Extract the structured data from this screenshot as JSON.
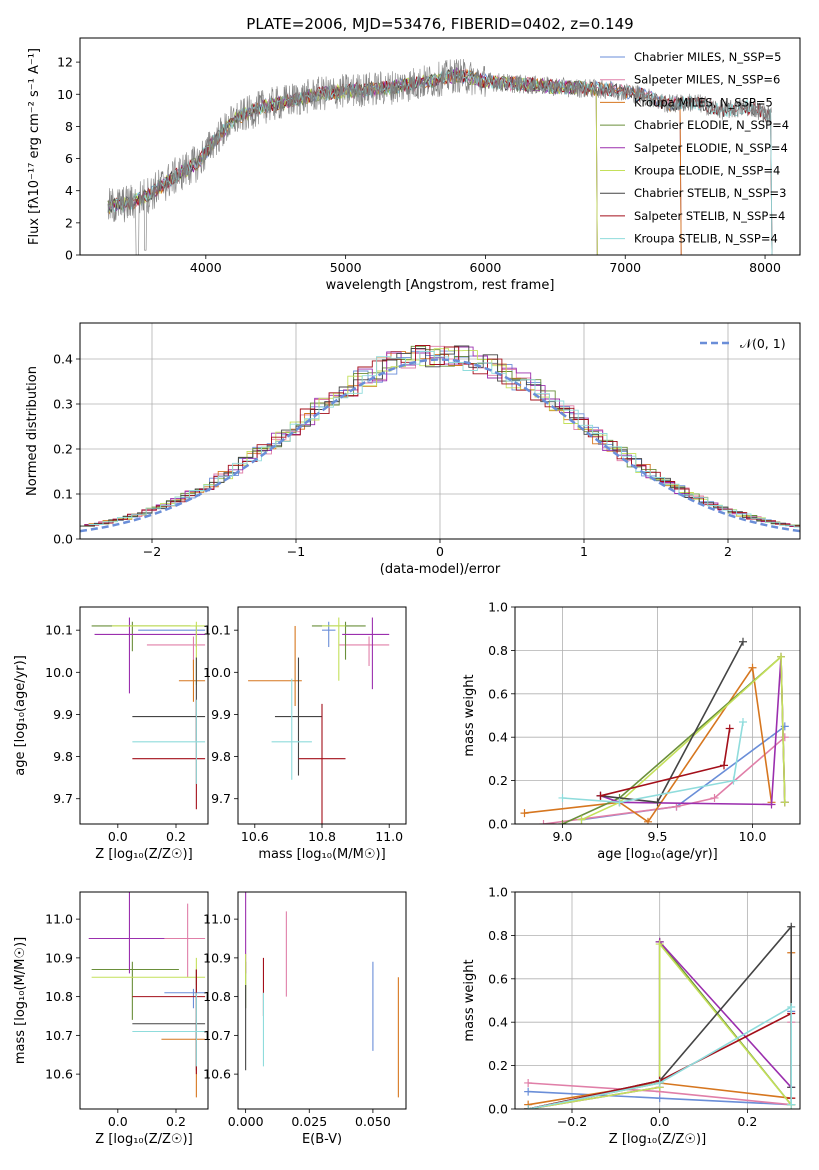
{
  "colors": {
    "chabrier_miles": "#6a8ed8",
    "salpeter_miles": "#e07fa8",
    "kroupa_miles": "#d6761f",
    "chabrier_elodie": "#6a8f3a",
    "salpeter_elodie": "#9b2fae",
    "kroupa_elodie": "#c4e05a",
    "chabrier_stelib": "#444444",
    "salpeter_stelib": "#a30f1a",
    "kroupa_stelib": "#8fdcdc",
    "spectrum": "#7f7f7f"
  },
  "chart_data": [
    {
      "type": "line",
      "title": "PLATE=2006, MJD=53476, FIBERID=0402, z=0.149",
      "xlabel": "wavelength [Angstrom, rest frame]",
      "ylabel": "Flux [fλ10⁻¹⁷ erg cm⁻² s⁻¹ A⁻¹]",
      "xlim": [
        3100,
        8250
      ],
      "ylim": [
        0,
        13.5
      ],
      "xticks": [
        "4000",
        "5000",
        "6000",
        "7000",
        "8000"
      ],
      "yticks": [
        "0",
        "2",
        "4",
        "6",
        "8",
        "10",
        "12"
      ],
      "legend_position": "right",
      "legend": [
        "Chabrier MILES, N_SSP=5",
        "Salpeter MILES, N_SSP=6",
        "Kroupa MILES, N_SSP=5",
        "Chabrier ELODIE, N_SSP=4",
        "Salpeter ELODIE, N_SSP=4",
        "Kroupa ELODIE, N_SSP=4",
        "Chabrier STELIB, N_SSP=3",
        "Salpeter STELIB, N_SSP=4",
        "Kroupa STELIB, N_SSP=4"
      ],
      "continuum": {
        "x": [
          3300,
          3450,
          3600,
          3800,
          3950,
          4050,
          4200,
          4400,
          4600,
          4800,
          5000,
          5300,
          5600,
          5800,
          6000,
          6300,
          6600,
          6900,
          7100,
          7300,
          7500,
          7700,
          7900,
          8050
        ],
        "y": [
          3.0,
          3.2,
          3.8,
          5.0,
          5.8,
          7.0,
          8.4,
          9.2,
          9.6,
          10.0,
          10.2,
          10.4,
          10.8,
          11.2,
          10.8,
          10.6,
          10.4,
          10.3,
          10.0,
          9.4,
          9.5,
          9.0,
          9.2,
          8.6
        ]
      },
      "model_cutoffs": [
        {
          "model": "Chabrier MILES",
          "end": 7400
        },
        {
          "model": "Salpeter MILES",
          "end": 7400
        },
        {
          "model": "Kroupa MILES",
          "end": 7400
        },
        {
          "model": "Chabrier ELODIE",
          "end": 6800
        },
        {
          "model": "Salpeter ELODIE",
          "end": 6800
        },
        {
          "model": "Kroupa ELODIE",
          "end": 6800
        },
        {
          "model": "Chabrier STELIB",
          "end": 8050
        },
        {
          "model": "Salpeter STELIB",
          "end": 8050
        },
        {
          "model": "Kroupa STELIB",
          "end": 8050
        }
      ]
    },
    {
      "type": "line",
      "title": "",
      "xlabel": "(data-model)/error",
      "ylabel": "Normed distribution",
      "xlim": [
        -2.5,
        2.5
      ],
      "ylim": [
        0,
        0.48
      ],
      "xticks": [
        "−2",
        "−1",
        "0",
        "1",
        "2"
      ],
      "yticks": [
        "0.0",
        "0.1",
        "0.2",
        "0.3",
        "0.4"
      ],
      "grid": true,
      "legend_position": "top-right",
      "legend": [
        "𝒩(0, 1)"
      ],
      "series": [
        {
          "name": "N(0,1)",
          "style": "dashed",
          "mean": 0,
          "sigma": 1
        }
      ]
    },
    {
      "type": "scatter",
      "title": "",
      "xlabel": "Z [log₁₀(Z/Z☉)]",
      "ylabel": "age  [log₁₀(age/yr)]",
      "xlim": [
        -0.13,
        0.31
      ],
      "ylim": [
        9.64,
        10.155
      ],
      "xticks": [
        "0.0",
        "0.2"
      ],
      "yticks": [
        "9.7",
        "9.8",
        "9.9",
        "10.0",
        "10.1"
      ],
      "points": [
        {
          "model": "Chabrier MILES",
          "x": 0.27,
          "xerr": [
            0.2,
            0.03
          ],
          "y": 10.1,
          "yerr": [
            0.04,
            0.01
          ]
        },
        {
          "model": "Salpeter MILES",
          "x": 0.26,
          "xerr": [
            0.16,
            0.04
          ],
          "y": 10.065,
          "yerr": [
            0.06,
            0.02
          ]
        },
        {
          "model": "Kroupa MILES",
          "x": 0.26,
          "xerr": [
            0.05,
            0.04
          ],
          "y": 9.98,
          "yerr": [
            0.05,
            0.05
          ]
        },
        {
          "model": "Chabrier ELODIE",
          "x": 0.05,
          "xerr": [
            0.14,
            0.2
          ],
          "y": 10.11,
          "yerr": [
            0.06,
            0.01
          ]
        },
        {
          "model": "Salpeter ELODIE",
          "x": 0.04,
          "xerr": [
            0.12,
            0.26
          ],
          "y": 10.09,
          "yerr": [
            0.14,
            0.04
          ]
        },
        {
          "model": "Kroupa ELODIE",
          "x": 0.27,
          "xerr": [
            0.29,
            0.03
          ],
          "y": 10.11,
          "yerr": [
            0.14,
            0.01
          ]
        },
        {
          "model": "Chabrier STELIB",
          "x": 0.27,
          "xerr": [
            0.22,
            0.03
          ],
          "y": 9.895,
          "yerr": [
            0.06,
            0.14
          ]
        },
        {
          "model": "Salpeter STELIB",
          "x": 0.27,
          "xerr": [
            0.22,
            0.03
          ],
          "y": 9.795,
          "yerr": [
            0.12,
            0.14
          ]
        },
        {
          "model": "Kroupa STELIB",
          "x": 0.27,
          "xerr": [
            0.22,
            0.03
          ],
          "y": 9.835,
          "yerr": [
            0.1,
            0.1
          ]
        }
      ]
    },
    {
      "type": "scatter",
      "title": "",
      "xlabel": "mass [log₁₀(M/M☉)]",
      "ylabel": "",
      "xlim": [
        10.55,
        11.05
      ],
      "ylim": [
        9.64,
        10.155
      ],
      "xticks": [
        "10.6",
        "10.8",
        "11.0"
      ],
      "yticks": [
        "9.7",
        "9.8",
        "9.9",
        "10.0",
        "10.1"
      ],
      "points": [
        {
          "model": "Chabrier MILES",
          "x": 10.82,
          "xerr": [
            0.02,
            0.02
          ],
          "y": 10.1,
          "yerr": [
            0.04,
            0.02
          ]
        },
        {
          "model": "Salpeter MILES",
          "x": 10.94,
          "xerr": [
            0.09,
            0.06
          ],
          "y": 10.065,
          "yerr": [
            0.05,
            0.02
          ]
        },
        {
          "model": "Kroupa MILES",
          "x": 10.72,
          "xerr": [
            0.14,
            0.02
          ],
          "y": 9.98,
          "yerr": [
            0.06,
            0.13
          ]
        },
        {
          "model": "Chabrier ELODIE",
          "x": 10.87,
          "xerr": [
            0.1,
            0.06
          ],
          "y": 10.11,
          "yerr": [
            0.08,
            0.01
          ]
        },
        {
          "model": "Salpeter ELODIE",
          "x": 10.95,
          "xerr": [
            0.09,
            0.05
          ],
          "y": 10.09,
          "yerr": [
            0.13,
            0.04
          ]
        },
        {
          "model": "Kroupa ELODIE",
          "x": 10.85,
          "xerr": [
            0.05,
            0.02
          ],
          "y": 10.11,
          "yerr": [
            0.13,
            0.02
          ]
        },
        {
          "model": "Chabrier STELIB",
          "x": 10.73,
          "xerr": [
            0.07,
            0.07
          ],
          "y": 9.895,
          "yerr": [
            0.14,
            0.14
          ]
        },
        {
          "model": "Salpeter STELIB",
          "x": 10.8,
          "xerr": [
            0.07,
            0.07
          ],
          "y": 9.795,
          "yerr": [
            0.22,
            0.13
          ]
        },
        {
          "model": "Kroupa STELIB",
          "x": 10.71,
          "xerr": [
            0.06,
            0.06
          ],
          "y": 9.835,
          "yerr": [
            0.09,
            0.15
          ]
        }
      ]
    },
    {
      "type": "line",
      "title": "",
      "xlabel": "age  [log₁₀(age/yr)]",
      "ylabel": "mass weight",
      "xlim": [
        8.75,
        10.25
      ],
      "ylim": [
        0,
        1.0
      ],
      "xticks": [
        "9.0",
        "9.5",
        "10.0"
      ],
      "yticks": [
        "0.0",
        "0.2",
        "0.4",
        "0.6",
        "0.8",
        "1.0"
      ],
      "grid": true,
      "series": [
        {
          "name": "Chabrier MILES",
          "x": [
            9.1,
            9.6,
            10.17
          ],
          "y": [
            0.02,
            0.08,
            0.45
          ]
        },
        {
          "name": "Salpeter MILES",
          "x": [
            8.9,
            9.6,
            9.8,
            10.17
          ],
          "y": [
            0.0,
            0.08,
            0.12,
            0.4
          ]
        },
        {
          "name": "Kroupa MILES",
          "x": [
            8.8,
            9.3,
            9.45,
            10.0,
            10.1
          ],
          "y": [
            0.05,
            0.1,
            0.01,
            0.72,
            0.1
          ]
        },
        {
          "name": "Chabrier ELODIE",
          "x": [
            9.0,
            9.3,
            10.15,
            10.17
          ],
          "y": [
            0.0,
            0.12,
            0.77,
            0.1
          ]
        },
        {
          "name": "Salpeter ELODIE",
          "x": [
            9.2,
            9.3,
            10.1,
            10.15,
            10.17
          ],
          "y": [
            0.13,
            0.1,
            0.09,
            0.77,
            0.1
          ]
        },
        {
          "name": "Kroupa ELODIE",
          "x": [
            9.1,
            9.3,
            10.15,
            10.17
          ],
          "y": [
            0.02,
            0.1,
            0.77,
            0.1
          ]
        },
        {
          "name": "Chabrier STELIB",
          "x": [
            9.2,
            9.5,
            9.95
          ],
          "y": [
            0.13,
            0.1,
            0.84
          ]
        },
        {
          "name": "Salpeter STELIB",
          "x": [
            9.2,
            9.85,
            9.88
          ],
          "y": [
            0.13,
            0.27,
            0.44
          ]
        },
        {
          "name": "Kroupa STELIB",
          "x": [
            9.0,
            9.3,
            9.9,
            9.95
          ],
          "y": [
            0.12,
            0.1,
            0.2,
            0.47
          ]
        }
      ]
    },
    {
      "type": "scatter",
      "title": "",
      "xlabel": "Z [log₁₀(Z/Z☉)]",
      "ylabel": "mass [log₁₀(M/M☉)]",
      "xlim": [
        -0.13,
        0.31
      ],
      "ylim": [
        10.51,
        11.07
      ],
      "xticks": [
        "0.0",
        "0.2"
      ],
      "yticks": [
        "10.6",
        "10.7",
        "10.8",
        "10.9",
        "11.0"
      ],
      "points": [
        {
          "model": "Chabrier MILES",
          "x": 0.26,
          "xerr": [
            0.1,
            0.04
          ],
          "y": 10.81,
          "yerr": [
            0.04,
            0.01
          ]
        },
        {
          "model": "Salpeter MILES",
          "x": 0.24,
          "xerr": [
            0.09,
            0.06
          ],
          "y": 10.95,
          "yerr": [
            0.1,
            0.09
          ]
        },
        {
          "model": "Kroupa MILES",
          "x": 0.27,
          "xerr": [
            0.12,
            0.03
          ],
          "y": 10.69,
          "yerr": [
            0.15,
            0.05
          ]
        },
        {
          "model": "Chabrier ELODIE",
          "x": 0.05,
          "xerr": [
            0.14,
            0.16
          ],
          "y": 10.87,
          "yerr": [
            0.13,
            0.02
          ]
        },
        {
          "model": "Salpeter ELODIE",
          "x": 0.04,
          "xerr": [
            0.14,
            0.12
          ],
          "y": 10.95,
          "yerr": [
            0.09,
            0.17
          ]
        },
        {
          "model": "Kroupa ELODIE",
          "x": 0.27,
          "xerr": [
            0.36,
            0.03
          ],
          "y": 10.85,
          "yerr": [
            0.02,
            0.05
          ]
        },
        {
          "model": "Chabrier STELIB",
          "x": 0.27,
          "xerr": [
            0.22,
            0.03
          ],
          "y": 10.73,
          "yerr": [
            0.12,
            0.14
          ]
        },
        {
          "model": "Salpeter STELIB",
          "x": 0.27,
          "xerr": [
            0.22,
            0.03
          ],
          "y": 10.8,
          "yerr": [
            0.2,
            0.07
          ]
        },
        {
          "model": "Kroupa STELIB",
          "x": 0.27,
          "xerr": [
            0.22,
            0.03
          ],
          "y": 10.71,
          "yerr": [
            0.09,
            0.1
          ]
        }
      ]
    },
    {
      "type": "scatter",
      "title": "",
      "xlabel": "E(B-V)",
      "ylabel": "",
      "xlim": [
        -0.003,
        0.063
      ],
      "ylim": [
        10.51,
        11.07
      ],
      "xticks": [
        "0.000",
        "0.025",
        "0.050"
      ],
      "yticks": [
        "10.6",
        "10.7",
        "10.8",
        "10.9",
        "11.0"
      ],
      "points": [
        {
          "model": "Chabrier MILES",
          "x": 0.05,
          "y": 10.81,
          "yerr": [
            0.15,
            0.08
          ]
        },
        {
          "model": "Salpeter MILES",
          "x": 0.016,
          "y": 10.95,
          "yerr": [
            0.15,
            0.07
          ]
        },
        {
          "model": "Kroupa MILES",
          "x": 0.06,
          "y": 10.69,
          "yerr": [
            0.15,
            0.16
          ]
        },
        {
          "model": "Chabrier ELODIE",
          "x": 0.0,
          "y": 10.87,
          "yerr": [
            0.1,
            0.02
          ]
        },
        {
          "model": "Salpeter ELODIE",
          "x": 0.0,
          "y": 10.95,
          "yerr": [
            0.09,
            0.17
          ]
        },
        {
          "model": "Kroupa ELODIE",
          "x": 0.0,
          "y": 10.85,
          "yerr": [
            0.03,
            0.06
          ]
        },
        {
          "model": "Chabrier STELIB",
          "x": 0.0,
          "y": 10.73,
          "yerr": [
            0.12,
            0.1
          ]
        },
        {
          "model": "Salpeter STELIB",
          "x": 0.007,
          "y": 10.8,
          "yerr": [
            0.05,
            0.1
          ]
        },
        {
          "model": "Kroupa STELIB",
          "x": 0.007,
          "y": 10.71,
          "yerr": [
            0.09,
            0.1
          ]
        }
      ]
    },
    {
      "type": "line",
      "title": "",
      "xlabel": "Z [log₁₀(Z/Z☉)]",
      "ylabel": "mass weight",
      "xlim": [
        -0.33,
        0.32
      ],
      "ylim": [
        0,
        1.0
      ],
      "xticks": [
        "−0.2",
        "0.0",
        "0.2"
      ],
      "yticks": [
        "0.0",
        "0.2",
        "0.4",
        "0.6",
        "0.8",
        "1.0"
      ],
      "grid": true,
      "series": [
        {
          "name": "Chabrier MILES",
          "x": [
            -0.3,
            0.0,
            0.3,
            0.3
          ],
          "y": [
            0.08,
            0.05,
            0.02,
            0.45
          ]
        },
        {
          "name": "Salpeter MILES",
          "x": [
            -0.3,
            0.0,
            0.3,
            0.3
          ],
          "y": [
            0.12,
            0.08,
            0.02,
            0.4
          ]
        },
        {
          "name": "Kroupa MILES",
          "x": [
            -0.3,
            0.0,
            0.3,
            0.3
          ],
          "y": [
            0.02,
            0.12,
            0.05,
            0.72
          ]
        },
        {
          "name": "Chabrier ELODIE",
          "x": [
            -0.3,
            0.0,
            0.0,
            0.3
          ],
          "y": [
            0.0,
            0.12,
            0.77,
            0.02
          ]
        },
        {
          "name": "Salpeter ELODIE",
          "x": [
            -0.3,
            0.0,
            0.0,
            0.3
          ],
          "y": [
            0.0,
            0.1,
            0.77,
            0.1
          ]
        },
        {
          "name": "Kroupa ELODIE",
          "x": [
            -0.3,
            0.0,
            0.0,
            0.3
          ],
          "y": [
            0.0,
            0.1,
            0.76,
            0.02
          ]
        },
        {
          "name": "Chabrier STELIB",
          "x": [
            -0.3,
            0.0,
            0.3,
            0.3
          ],
          "y": [
            0.0,
            0.13,
            0.84,
            0.1
          ]
        },
        {
          "name": "Salpeter STELIB",
          "x": [
            -0.3,
            0.0,
            0.3,
            0.3
          ],
          "y": [
            0.0,
            0.13,
            0.44,
            0.05
          ]
        },
        {
          "name": "Kroupa STELIB",
          "x": [
            -0.3,
            0.0,
            0.3,
            0.3
          ],
          "y": [
            0.0,
            0.12,
            0.47,
            0.02
          ]
        }
      ]
    }
  ]
}
